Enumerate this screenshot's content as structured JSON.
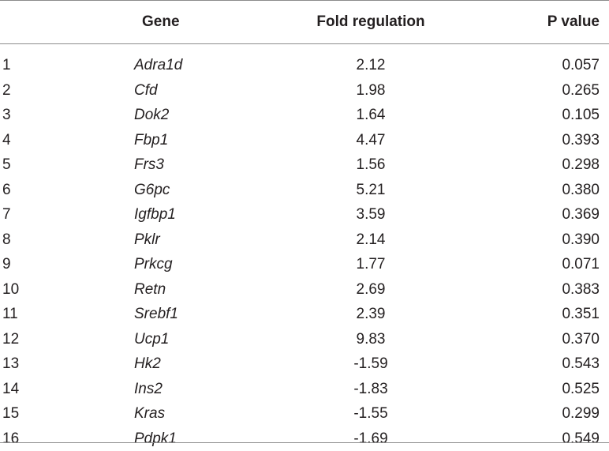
{
  "table": {
    "headers": {
      "index": "",
      "gene": "Gene",
      "fold": "Fold regulation",
      "p": "P value"
    },
    "rows": [
      {
        "index": "1",
        "gene": "Adra1d",
        "fold": "2.12",
        "p": "0.057"
      },
      {
        "index": "2",
        "gene": "Cfd",
        "fold": "1.98",
        "p": "0.265"
      },
      {
        "index": "3",
        "gene": "Dok2",
        "fold": "1.64",
        "p": "0.105"
      },
      {
        "index": "4",
        "gene": "Fbp1",
        "fold": "4.47",
        "p": "0.393"
      },
      {
        "index": "5",
        "gene": "Frs3",
        "fold": "1.56",
        "p": "0.298"
      },
      {
        "index": "6",
        "gene": "G6pc",
        "fold": "5.21",
        "p": "0.380"
      },
      {
        "index": "7",
        "gene": "Igfbp1",
        "fold": "3.59",
        "p": "0.369"
      },
      {
        "index": "8",
        "gene": "Pklr",
        "fold": "2.14",
        "p": "0.390"
      },
      {
        "index": "9",
        "gene": "Prkcg",
        "fold": "1.77",
        "p": "0.071"
      },
      {
        "index": "10",
        "gene": "Retn",
        "fold": "2.69",
        "p": "0.383"
      },
      {
        "index": "11",
        "gene": "Srebf1",
        "fold": "2.39",
        "p": "0.351"
      },
      {
        "index": "12",
        "gene": "Ucp1",
        "fold": "9.83",
        "p": "0.370"
      },
      {
        "index": "13",
        "gene": "Hk2",
        "fold": "-1.59",
        "p": "0.543"
      },
      {
        "index": "14",
        "gene": "Ins2",
        "fold": "-1.83",
        "p": "0.525"
      },
      {
        "index": "15",
        "gene": "Kras",
        "fold": "-1.55",
        "p": "0.299"
      },
      {
        "index": "16",
        "gene": "Pdpk1",
        "fold": "-1.69",
        "p": "0.549"
      }
    ]
  }
}
